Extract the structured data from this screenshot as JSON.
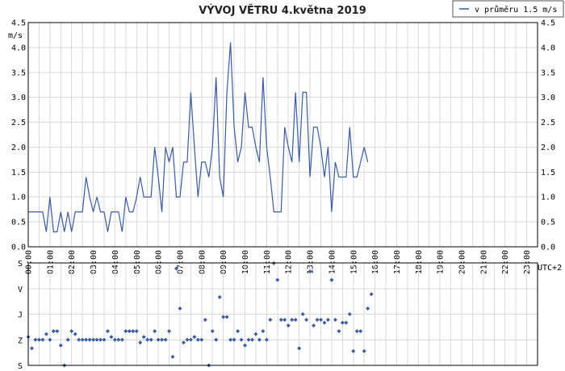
{
  "chart_data": [
    {
      "type": "line",
      "title": "VÝVOJ VĚTRU  4.května 2019",
      "ylabel": "m/s",
      "xlabel": "UTC+2",
      "ylim": [
        0,
        4.5
      ],
      "yticks": [
        "0.0",
        "0.5",
        "1.0",
        "1.5",
        "2.0",
        "2.5",
        "3.0",
        "3.5",
        "4.0",
        "4.5"
      ],
      "xticks": [
        "00:00",
        "01:00",
        "02:00",
        "03:00",
        "04:00",
        "05:00",
        "06:00",
        "07:00",
        "08:00",
        "09:00",
        "10:00",
        "11:00",
        "12:00",
        "13:00",
        "14:00",
        "15:00",
        "16:00",
        "17:00",
        "18:00",
        "19:00",
        "20:00",
        "21:00",
        "22:00",
        "23:00"
      ],
      "grid": true,
      "legend_position": "top-right",
      "series": [
        {
          "name": "v průměru 1.5 m/s",
          "color": "#3a5ba0",
          "step_minutes": 10,
          "values": [
            0.7,
            0.7,
            0.7,
            0.7,
            0.7,
            0.3,
            1.0,
            0.3,
            0.3,
            0.7,
            0.3,
            0.7,
            0.3,
            0.7,
            0.7,
            0.7,
            1.4,
            1.0,
            0.7,
            1.0,
            0.7,
            0.7,
            0.3,
            0.7,
            0.7,
            0.7,
            0.3,
            1.0,
            0.7,
            0.7,
            1.0,
            1.4,
            1.0,
            1.0,
            1.0,
            2.0,
            1.4,
            0.7,
            2.0,
            1.7,
            2.0,
            1.0,
            1.0,
            1.7,
            1.7,
            3.1,
            2.0,
            1.0,
            1.7,
            1.7,
            1.4,
            2.0,
            3.4,
            1.4,
            1.0,
            3.1,
            4.1,
            2.4,
            1.7,
            2.0,
            3.1,
            2.4,
            2.4,
            2.0,
            1.7,
            3.4,
            2.0,
            1.4,
            0.7,
            0.7,
            0.7,
            2.4,
            2.0,
            1.7,
            3.1,
            1.7,
            3.1,
            3.1,
            1.4,
            2.4,
            2.4,
            2.0,
            1.4,
            2.0,
            0.7,
            1.7,
            1.4,
            1.4,
            1.4,
            2.4,
            1.4,
            1.4,
            1.7,
            2.0,
            1.7
          ]
        }
      ]
    },
    {
      "type": "scatter",
      "ylabels": [
        "S",
        "V",
        "J",
        "Z",
        "S"
      ],
      "series": [
        {
          "name": "wind direction",
          "color": "#3a5ba0",
          "step_minutes": 10,
          "values": [
            260,
            300,
            270,
            270,
            270,
            250,
            270,
            240,
            240,
            290,
            360,
            270,
            240,
            250,
            270,
            270,
            270,
            270,
            270,
            270,
            270,
            270,
            240,
            260,
            270,
            270,
            270,
            240,
            240,
            240,
            240,
            280,
            260,
            270,
            270,
            240,
            270,
            270,
            270,
            240,
            330,
            20,
            160,
            280,
            270,
            270,
            260,
            270,
            270,
            200,
            360,
            240,
            270,
            120,
            190,
            190,
            270,
            270,
            240,
            270,
            290,
            270,
            270,
            250,
            270,
            240,
            270,
            200,
            1,
            60,
            200,
            200,
            220,
            200,
            200,
            300,
            180,
            200,
            30,
            220,
            200,
            200,
            210,
            200,
            60,
            200,
            240,
            210,
            210,
            180,
            310,
            240,
            240,
            310,
            160,
            110
          ]
        }
      ]
    }
  ]
}
